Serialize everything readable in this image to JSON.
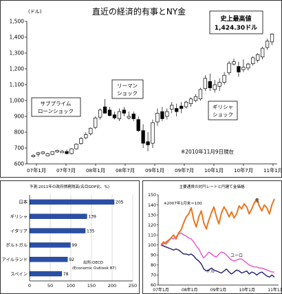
{
  "chart_data": [
    {
      "type": "candlestick",
      "title": "直近の経済的有事とNY金",
      "ylabel": "(ドル)",
      "ylim": [
        600,
        1500
      ],
      "yticks": [
        "1,500",
        "1,400",
        "1,300",
        "1,200",
        "1,100",
        "1,000",
        "900",
        "800",
        "700",
        "600"
      ],
      "xticks": [
        "07年1月",
        "07年7月",
        "08年1月",
        "08年7月",
        "09年1月",
        "09年7月",
        "10年1月",
        "10年7月",
        "11年1月"
      ],
      "grid": false,
      "annotations": {
        "record": [
          "史上最高値",
          "1,424.30ドル"
        ],
        "subprime": [
          "サブプライム",
          "ローンショック"
        ],
        "lehman": [
          "リーマン",
          "ショック"
        ],
        "greece": [
          "ギリシャ",
          "ショック"
        ],
        "asof": "※2010年11月9日現在"
      },
      "candles": [
        [
          640,
          660,
          655,
          645
        ],
        [
          645,
          675,
          670,
          660
        ],
        [
          660,
          680,
          675,
          665
        ],
        [
          660,
          670,
          665,
          650
        ],
        [
          655,
          680,
          678,
          660
        ],
        [
          670,
          690,
          685,
          675
        ],
        [
          672,
          688,
          680,
          670
        ],
        [
          660,
          690,
          665,
          678
        ],
        [
          660,
          700,
          695,
          665
        ],
        [
          690,
          730,
          725,
          695
        ],
        [
          720,
          770,
          760,
          728
        ],
        [
          755,
          800,
          785,
          765
        ],
        [
          780,
          830,
          825,
          790
        ],
        [
          820,
          900,
          890,
          830
        ],
        [
          880,
          950,
          940,
          895
        ],
        [
          920,
          1010,
          920,
          960
        ],
        [
          900,
          960,
          905,
          940
        ],
        [
          880,
          930,
          890,
          910
        ],
        [
          870,
          950,
          930,
          885
        ],
        [
          900,
          960,
          920,
          940
        ],
        [
          880,
          930,
          900,
          890
        ],
        [
          870,
          930,
          885,
          915
        ],
        [
          800,
          900,
          810,
          880
        ],
        [
          700,
          850,
          730,
          810
        ],
        [
          680,
          800,
          720,
          740
        ],
        [
          700,
          880,
          860,
          730
        ],
        [
          840,
          950,
          920,
          865
        ],
        [
          870,
          960,
          885,
          930
        ],
        [
          880,
          950,
          930,
          900
        ],
        [
          920,
          990,
          970,
          945
        ],
        [
          900,
          980,
          930,
          950
        ],
        [
          920,
          990,
          950,
          965
        ],
        [
          950,
          1000,
          990,
          960
        ],
        [
          960,
          1020,
          1010,
          980
        ],
        [
          990,
          1040,
          1025,
          1000
        ],
        [
          1000,
          1080,
          1070,
          1010
        ],
        [
          1060,
          1160,
          1140,
          1075
        ],
        [
          1060,
          1170,
          1080,
          1120
        ],
        [
          1050,
          1130,
          1100,
          1070
        ],
        [
          1060,
          1140,
          1115,
          1090
        ],
        [
          1100,
          1180,
          1160,
          1115
        ],
        [
          1160,
          1250,
          1235,
          1175
        ],
        [
          1220,
          1265,
          1245,
          1230
        ],
        [
          1150,
          1245,
          1180,
          1215
        ],
        [
          1180,
          1260,
          1210,
          1195
        ],
        [
          1190,
          1240,
          1230,
          1205
        ],
        [
          1220,
          1280,
          1270,
          1232
        ],
        [
          1240,
          1300,
          1290,
          1255
        ],
        [
          1260,
          1340,
          1330,
          1275
        ],
        [
          1320,
          1390,
          1375,
          1335
        ],
        [
          1350,
          1424.3,
          1420,
          1370
        ]
      ]
    },
    {
      "type": "bar",
      "orientation": "horizontal",
      "title": "予測:2011年の政府債務残高(名目GDP比、%)",
      "categories": [
        "日本",
        "ギリシャ",
        "イタリア",
        "ポルトガル",
        "アイルランド",
        "スペイン"
      ],
      "values": [
        205,
        139,
        135,
        99,
        92,
        78
      ],
      "xlim": [
        0,
        250
      ],
      "xticks": [
        "0",
        "50",
        "100",
        "150",
        "200",
        "250"
      ],
      "source": [
        "出所:OECD",
        "(Economic Outlook 87)"
      ]
    },
    {
      "type": "line",
      "title": "主要通貨の対円レートと円建て金価格",
      "note": "※2007年1月末＝100",
      "ylim": [
        60,
        150
      ],
      "yticks": [
        "150",
        "140",
        "130",
        "120",
        "110",
        "100",
        "90",
        "80",
        "70",
        "60"
      ],
      "xticks": [
        "07年1月",
        "08年1月",
        "09年1月",
        "10年1月",
        "11年1月"
      ],
      "series": [
        {
          "name": "金",
          "color": "#e8761e",
          "values": [
            100,
            103,
            101,
            104,
            107,
            110,
            106,
            112,
            115,
            122,
            128,
            131,
            137,
            125,
            118,
            128,
            134,
            122,
            116,
            125,
            132,
            138,
            128,
            121,
            132,
            138,
            134,
            128,
            133,
            127,
            131,
            139,
            136,
            141,
            138,
            131,
            136,
            142,
            146,
            139,
            134,
            140,
            137,
            131,
            140,
            146
          ]
        },
        {
          "name": "ユーロ",
          "color": "#e84fc8",
          "values": [
            100,
            101,
            103,
            105,
            107,
            106,
            108,
            111,
            112,
            110,
            109,
            107,
            106,
            103,
            99,
            96,
            91,
            87,
            90,
            93,
            91,
            89,
            88,
            91,
            93,
            92,
            90,
            87,
            85,
            84,
            85,
            86,
            86,
            84,
            82,
            80,
            79,
            78,
            78,
            77,
            77,
            76,
            75,
            74,
            73,
            73
          ]
        },
        {
          "name": "ドル",
          "color": "#1a1a6e",
          "values": [
            100,
            99,
            98,
            97,
            96,
            95,
            96,
            95,
            93,
            91,
            91,
            90,
            91,
            89,
            86,
            84,
            81,
            76,
            74,
            75,
            77,
            75,
            74,
            73,
            72,
            74,
            76,
            73,
            71,
            73,
            75,
            74,
            72,
            73,
            74,
            71,
            73,
            72,
            70,
            72,
            73,
            71,
            69,
            68,
            70,
            68
          ]
        }
      ]
    }
  ]
}
